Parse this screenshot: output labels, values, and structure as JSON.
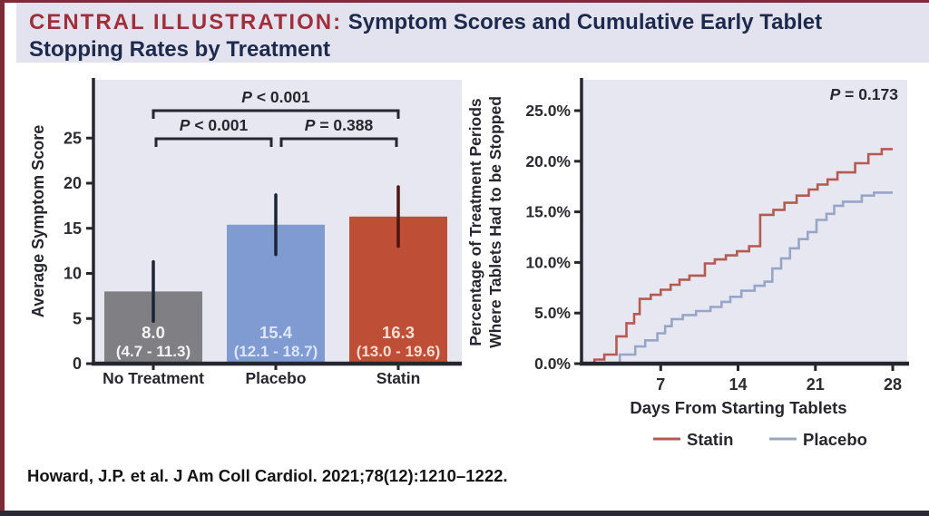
{
  "header": {
    "label": "CENTRAL ILLUSTRATION:",
    "title": " Symptom Scores and Cumulative Early Tablet Stopping Rates by Treatment"
  },
  "citation": "Howard, J.P. et al. J Am Coll Cardiol. 2021;78(12):1210–1222.",
  "colors": {
    "accent_red": "#9f2f3a",
    "navy": "#1d2a4e",
    "border_maroon": "#7d2b35",
    "border_bottom": "#2b2a36",
    "band_bg": "#e3e3ef",
    "plot_bg": "#e7e7f1",
    "axis": "#26262e",
    "tick_text": "#2b2b30"
  },
  "chart_data": [
    {
      "type": "bar",
      "ylabel": "Average Symptom Score",
      "ylim": [
        0,
        30
      ],
      "yticks": [
        0,
        5,
        10,
        15,
        20,
        25
      ],
      "grid": false,
      "categories": [
        "No Treatment",
        "Placebo",
        "Statin"
      ],
      "values": [
        8.0,
        15.4,
        16.3
      ],
      "ci_low": [
        4.7,
        12.1,
        13.0
      ],
      "ci_high": [
        11.3,
        18.7,
        19.6
      ],
      "bar_labels": [
        "8.0",
        "15.4",
        "16.3"
      ],
      "ci_labels": [
        "(4.7 - 11.3)",
        "(12.1 - 18.7)",
        "(13.0 - 19.6)"
      ],
      "bar_colors": [
        "#7f7f84",
        "#7f9bd1",
        "#bf4e36"
      ],
      "bar_label_colors": [
        "#f4f4f4",
        "#dde6f7",
        "#f7dccf"
      ],
      "error_colors": [
        "#1d2534",
        "#1d2534",
        "#4f1511"
      ],
      "comparisons": [
        {
          "label": "P < 0.001",
          "from": 0,
          "to": 2,
          "level": "top"
        },
        {
          "label": "P < 0.001",
          "from": 0,
          "to": 1,
          "level": "bottom"
        },
        {
          "label": "P = 0.388",
          "from": 1,
          "to": 2,
          "level": "bottom"
        }
      ]
    },
    {
      "type": "line",
      "step": true,
      "ylabel_lines": [
        "Percentage of Treatment Periods",
        "Where Tablets Had to be Stopped"
      ],
      "xlabel": "Days From Starting Tablets",
      "p_value": "P = 0.173",
      "xlim": [
        0,
        29
      ],
      "ylim": [
        0,
        27.5
      ],
      "xticks": [
        7,
        14,
        21,
        28
      ],
      "ytick_values": [
        0,
        5,
        10,
        15,
        20,
        25
      ],
      "ytick_labels": [
        "0.0%",
        "5.0%",
        "10.0%",
        "15.0%",
        "20.0%",
        "25.0%"
      ],
      "legend_position": "bottom",
      "grid": false,
      "series": [
        {
          "name": "Statin",
          "color": "#b45a50",
          "points": [
            [
              0,
              0
            ],
            [
              1,
              0.4
            ],
            [
              1.9,
              0.9
            ],
            [
              3,
              2.7
            ],
            [
              3.9,
              4.0
            ],
            [
              4.6,
              4.9
            ],
            [
              5.1,
              6.4
            ],
            [
              6.1,
              6.8
            ],
            [
              7,
              7.3
            ],
            [
              7.9,
              7.8
            ],
            [
              8.7,
              8.3
            ],
            [
              9.6,
              8.7
            ],
            [
              11,
              9.9
            ],
            [
              11.9,
              10.3
            ],
            [
              12.9,
              10.7
            ],
            [
              13.9,
              11.1
            ],
            [
              15,
              11.6
            ],
            [
              16,
              14.7
            ],
            [
              17.2,
              15.2
            ],
            [
              18.2,
              15.9
            ],
            [
              19.3,
              16.6
            ],
            [
              20.4,
              17.2
            ],
            [
              21.2,
              17.7
            ],
            [
              22.1,
              18.2
            ],
            [
              23,
              18.9
            ],
            [
              24.6,
              19.8
            ],
            [
              25.8,
              20.7
            ],
            [
              27,
              21.2
            ],
            [
              28,
              21.2
            ]
          ]
        },
        {
          "name": "Placebo",
          "color": "#97a6c6",
          "points": [
            [
              0,
              0
            ],
            [
              3.3,
              0.9
            ],
            [
              4.7,
              1.7
            ],
            [
              5.6,
              2.3
            ],
            [
              6.7,
              3.0
            ],
            [
              7.4,
              3.7
            ],
            [
              8,
              4.4
            ],
            [
              9,
              4.8
            ],
            [
              10.2,
              5.2
            ],
            [
              11.5,
              5.6
            ],
            [
              12.5,
              6.1
            ],
            [
              13.3,
              6.6
            ],
            [
              14.3,
              7.2
            ],
            [
              15.5,
              7.7
            ],
            [
              16.4,
              8.1
            ],
            [
              17.1,
              9.4
            ],
            [
              17.9,
              10.4
            ],
            [
              18.7,
              11.4
            ],
            [
              19.5,
              12.3
            ],
            [
              20.3,
              13.0
            ],
            [
              21.1,
              14.2
            ],
            [
              22,
              14.8
            ],
            [
              22.7,
              15.6
            ],
            [
              23.5,
              16.0
            ],
            [
              25.2,
              16.6
            ],
            [
              26.3,
              16.9
            ],
            [
              28,
              16.9
            ]
          ]
        }
      ]
    }
  ]
}
